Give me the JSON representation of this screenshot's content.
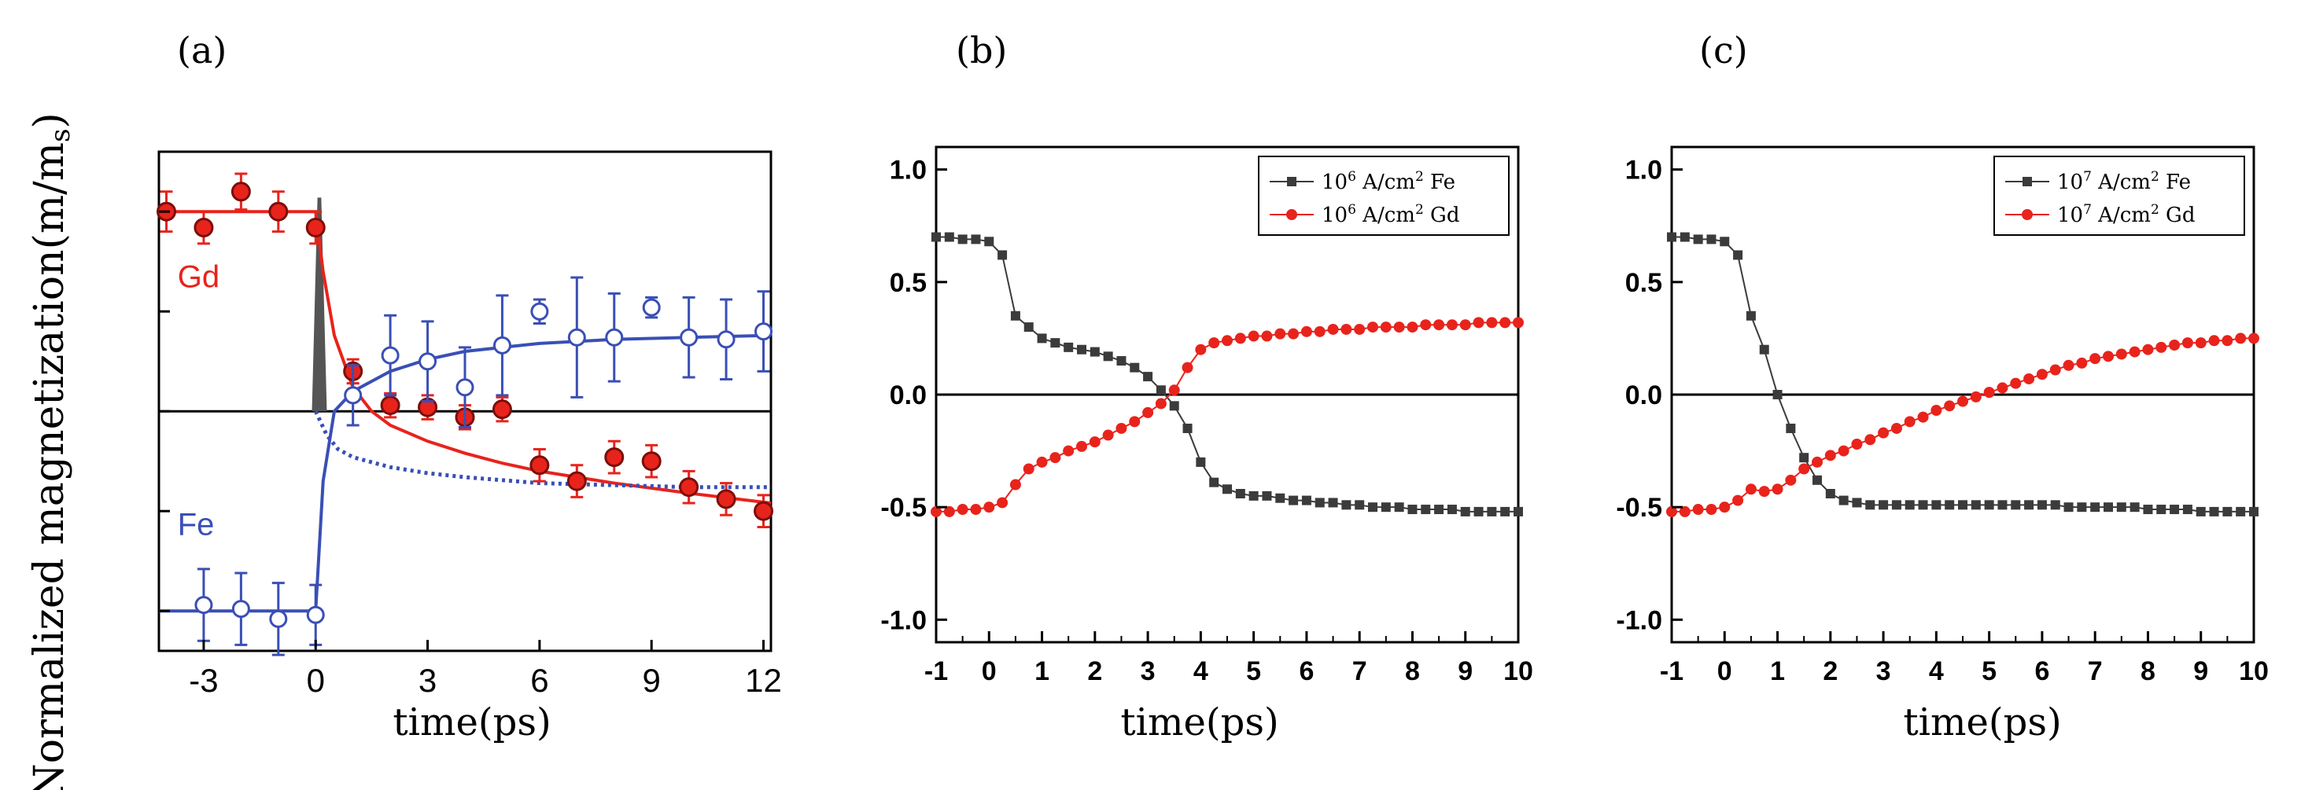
{
  "ylabel": "Normalized magnetization(m/m",
  "ylabel_sub": "s",
  "ylabel_close": ")",
  "colors": {
    "red": "#e8231c",
    "red_dark": "#7a0f0a",
    "blue": "#3a4fb5",
    "dark": "#3b3b3b",
    "axis": "#000000"
  },
  "chart_data": [
    {
      "panel_label": "(a)",
      "type": "scatter",
      "xlabel": "time(ps)",
      "xlim": [
        -4.2,
        12.2
      ],
      "ylim": [
        -1.2,
        1.3
      ],
      "xticks": [
        -3,
        0,
        3,
        6,
        9,
        12
      ],
      "xtick_labels": [
        "-3",
        "0",
        "3",
        "6",
        "9",
        "12"
      ],
      "yticks": [
        -1,
        -0.5,
        0,
        0.5,
        1
      ],
      "zero_line": true,
      "annotations": [
        {
          "text": "Gd",
          "x": -3.7,
          "y": 0.62,
          "color": "red"
        },
        {
          "text": "Fe",
          "x": -3.7,
          "y": -0.62,
          "color": "blue"
        }
      ],
      "pulse": {
        "x0": -0.1,
        "x1": 0.3,
        "peak": 1.07
      },
      "series": [
        {
          "name": "Gd",
          "marker": "filled-circle",
          "color": "red",
          "x": [
            -4,
            -3,
            -2,
            -1,
            0,
            1,
            2,
            3,
            4,
            5,
            6,
            7,
            8,
            9,
            10,
            11,
            12
          ],
          "y": [
            1.0,
            0.92,
            1.1,
            1.0,
            0.92,
            0.2,
            0.03,
            0.02,
            -0.03,
            0.01,
            -0.27,
            -0.35,
            -0.23,
            -0.25,
            -0.38,
            -0.44,
            -0.5
          ],
          "err": [
            0.1,
            0.08,
            0.09,
            0.1,
            0.08,
            0.06,
            0.06,
            0.06,
            0.06,
            0.06,
            0.08,
            0.08,
            0.08,
            0.08,
            0.08,
            0.08,
            0.08
          ]
        },
        {
          "name": "Fe",
          "marker": "open-circle",
          "color": "blue",
          "x": [
            -3,
            -2,
            -1,
            0,
            1,
            2,
            3,
            4,
            5,
            6,
            7,
            8,
            9,
            10,
            11,
            12
          ],
          "y": [
            -0.97,
            -0.99,
            -1.04,
            -1.02,
            0.08,
            0.28,
            0.25,
            0.12,
            0.33,
            0.5,
            0.37,
            0.37,
            0.52,
            0.37,
            0.36,
            0.4
          ],
          "err": [
            0.18,
            0.18,
            0.18,
            0.15,
            0.15,
            0.2,
            0.2,
            0.2,
            0.25,
            0.06,
            0.3,
            0.22,
            0.05,
            0.2,
            0.2,
            0.2
          ]
        }
      ],
      "fits": [
        {
          "name": "Gd fit",
          "color": "red",
          "style": "solid",
          "x": [
            -4.2,
            0,
            0.2,
            0.5,
            1,
            1.5,
            2,
            3,
            4,
            5,
            6,
            8,
            10,
            12.2
          ],
          "y": [
            1.0,
            1.0,
            0.7,
            0.38,
            0.12,
            0.0,
            -0.07,
            -0.15,
            -0.21,
            -0.26,
            -0.3,
            -0.36,
            -0.41,
            -0.46
          ]
        },
        {
          "name": "Fe fit",
          "color": "blue",
          "style": "solid",
          "x": [
            -4.2,
            0,
            0.2,
            0.5,
            1,
            2,
            3,
            4,
            5,
            6,
            8,
            10,
            12.2
          ],
          "y": [
            -1.0,
            -1.0,
            -0.35,
            0.0,
            0.1,
            0.2,
            0.26,
            0.3,
            0.32,
            0.34,
            0.36,
            0.37,
            0.38
          ]
        },
        {
          "name": "dotted",
          "color": "blue",
          "style": "dotted",
          "x": [
            0,
            0.3,
            0.6,
            1,
            2,
            3,
            4,
            6,
            8,
            10,
            12.2
          ],
          "y": [
            0.0,
            -0.12,
            -0.19,
            -0.23,
            -0.28,
            -0.31,
            -0.33,
            -0.36,
            -0.37,
            -0.38,
            -0.38
          ]
        }
      ]
    },
    {
      "panel_label": "(b)",
      "type": "line",
      "xlabel": "time(ps)",
      "xlim": [
        -1,
        10
      ],
      "ylim": [
        -1.1,
        1.1
      ],
      "xticks": [
        -1,
        0,
        1,
        2,
        3,
        4,
        5,
        6,
        7,
        8,
        9,
        10
      ],
      "xtick_labels": [
        "-1",
        "0",
        "1",
        "2",
        "3",
        "4",
        "5",
        "6",
        "7",
        "8",
        "9",
        "10"
      ],
      "yticks": [
        -1.0,
        -0.5,
        0.0,
        0.5,
        1.0
      ],
      "ytick_labels": [
        "-1.0",
        "-0.5",
        "0.0",
        "0.5",
        "1.0"
      ],
      "zero_line": true,
      "legend": [
        {
          "mantissa": "10",
          "exponent": "6",
          "unit": " A/cm",
          "unit_exp": "2",
          "suffix": " Fe"
        },
        {
          "mantissa": "10",
          "exponent": "6",
          "unit": " A/cm",
          "unit_exp": "2",
          "suffix": " Gd"
        }
      ],
      "series": [
        {
          "name": "10^6 A/cm^2 Fe",
          "color": "dark",
          "marker": "square",
          "x": [
            -1,
            -0.75,
            -0.5,
            -0.25,
            0,
            0.25,
            0.5,
            0.75,
            1,
            1.25,
            1.5,
            1.75,
            2,
            2.25,
            2.5,
            2.75,
            3,
            3.25,
            3.5,
            3.75,
            4,
            4.25,
            4.5,
            4.75,
            5,
            5.25,
            5.5,
            5.75,
            6,
            6.25,
            6.5,
            6.75,
            7,
            7.25,
            7.5,
            7.75,
            8,
            8.25,
            8.5,
            8.75,
            9,
            9.25,
            9.5,
            9.75,
            10
          ],
          "y": [
            0.7,
            0.7,
            0.69,
            0.69,
            0.68,
            0.62,
            0.35,
            0.3,
            0.25,
            0.23,
            0.21,
            0.2,
            0.19,
            0.17,
            0.15,
            0.12,
            0.08,
            0.02,
            -0.05,
            -0.15,
            -0.3,
            -0.39,
            -0.42,
            -0.44,
            -0.45,
            -0.45,
            -0.46,
            -0.47,
            -0.47,
            -0.48,
            -0.48,
            -0.49,
            -0.49,
            -0.5,
            -0.5,
            -0.5,
            -0.51,
            -0.51,
            -0.51,
            -0.51,
            -0.52,
            -0.52,
            -0.52,
            -0.52,
            -0.52
          ]
        },
        {
          "name": "10^6 A/cm^2 Gd",
          "color": "red",
          "marker": "circle",
          "x": [
            -1,
            -0.75,
            -0.5,
            -0.25,
            0,
            0.25,
            0.5,
            0.75,
            1,
            1.25,
            1.5,
            1.75,
            2,
            2.25,
            2.5,
            2.75,
            3,
            3.25,
            3.5,
            3.75,
            4,
            4.25,
            4.5,
            4.75,
            5,
            5.25,
            5.5,
            5.75,
            6,
            6.25,
            6.5,
            6.75,
            7,
            7.25,
            7.5,
            7.75,
            8,
            8.25,
            8.5,
            8.75,
            9,
            9.25,
            9.5,
            9.75,
            10
          ],
          "y": [
            -0.52,
            -0.52,
            -0.51,
            -0.51,
            -0.5,
            -0.48,
            -0.4,
            -0.33,
            -0.3,
            -0.28,
            -0.25,
            -0.23,
            -0.21,
            -0.18,
            -0.15,
            -0.12,
            -0.08,
            -0.04,
            0.02,
            0.12,
            0.2,
            0.23,
            0.24,
            0.25,
            0.26,
            0.26,
            0.27,
            0.27,
            0.28,
            0.28,
            0.29,
            0.29,
            0.29,
            0.3,
            0.3,
            0.3,
            0.3,
            0.31,
            0.31,
            0.31,
            0.31,
            0.32,
            0.32,
            0.32,
            0.32
          ]
        }
      ]
    },
    {
      "panel_label": "(c)",
      "type": "line",
      "xlabel": "time(ps)",
      "xlim": [
        -1,
        10
      ],
      "ylim": [
        -1.1,
        1.1
      ],
      "xticks": [
        -1,
        0,
        1,
        2,
        3,
        4,
        5,
        6,
        7,
        8,
        9,
        10
      ],
      "xtick_labels": [
        "-1",
        "0",
        "1",
        "2",
        "3",
        "4",
        "5",
        "6",
        "7",
        "8",
        "9",
        "10"
      ],
      "yticks": [
        -1.0,
        -0.5,
        0.0,
        0.5,
        1.0
      ],
      "ytick_labels": [
        "-1.0",
        "-0.5",
        "0.0",
        "0.5",
        "1.0"
      ],
      "zero_line": true,
      "legend": [
        {
          "mantissa": "10",
          "exponent": "7",
          "unit": " A/cm",
          "unit_exp": "2",
          "suffix": " Fe"
        },
        {
          "mantissa": "10",
          "exponent": "7",
          "unit": " A/cm",
          "unit_exp": "2",
          "suffix": " Gd"
        }
      ],
      "series": [
        {
          "name": "10^7 A/cm^2 Fe",
          "color": "dark",
          "marker": "square",
          "x": [
            -1,
            -0.75,
            -0.5,
            -0.25,
            0,
            0.25,
            0.5,
            0.75,
            1,
            1.25,
            1.5,
            1.75,
            2,
            2.25,
            2.5,
            2.75,
            3,
            3.25,
            3.5,
            3.75,
            4,
            4.25,
            4.5,
            4.75,
            5,
            5.25,
            5.5,
            5.75,
            6,
            6.25,
            6.5,
            6.75,
            7,
            7.25,
            7.5,
            7.75,
            8,
            8.25,
            8.5,
            8.75,
            9,
            9.25,
            9.5,
            9.75,
            10
          ],
          "y": [
            0.7,
            0.7,
            0.69,
            0.69,
            0.68,
            0.62,
            0.35,
            0.2,
            0.0,
            -0.15,
            -0.28,
            -0.38,
            -0.44,
            -0.47,
            -0.48,
            -0.49,
            -0.49,
            -0.49,
            -0.49,
            -0.49,
            -0.49,
            -0.49,
            -0.49,
            -0.49,
            -0.49,
            -0.49,
            -0.49,
            -0.49,
            -0.49,
            -0.49,
            -0.5,
            -0.5,
            -0.5,
            -0.5,
            -0.5,
            -0.5,
            -0.51,
            -0.51,
            -0.51,
            -0.51,
            -0.52,
            -0.52,
            -0.52,
            -0.52,
            -0.52
          ]
        },
        {
          "name": "10^7 A/cm^2 Gd",
          "color": "red",
          "marker": "circle",
          "x": [
            -1,
            -0.75,
            -0.5,
            -0.25,
            0,
            0.25,
            0.5,
            0.75,
            1,
            1.25,
            1.5,
            1.75,
            2,
            2.25,
            2.5,
            2.75,
            3,
            3.25,
            3.5,
            3.75,
            4,
            4.25,
            4.5,
            4.75,
            5,
            5.25,
            5.5,
            5.75,
            6,
            6.25,
            6.5,
            6.75,
            7,
            7.25,
            7.5,
            7.75,
            8,
            8.25,
            8.5,
            8.75,
            9,
            9.25,
            9.5,
            9.75,
            10
          ],
          "y": [
            -0.52,
            -0.52,
            -0.51,
            -0.51,
            -0.5,
            -0.47,
            -0.42,
            -0.43,
            -0.42,
            -0.38,
            -0.33,
            -0.3,
            -0.27,
            -0.25,
            -0.22,
            -0.2,
            -0.17,
            -0.15,
            -0.12,
            -0.1,
            -0.07,
            -0.05,
            -0.03,
            -0.01,
            0.01,
            0.03,
            0.05,
            0.07,
            0.09,
            0.11,
            0.13,
            0.14,
            0.16,
            0.17,
            0.18,
            0.19,
            0.2,
            0.21,
            0.22,
            0.23,
            0.23,
            0.24,
            0.24,
            0.25,
            0.25
          ]
        }
      ]
    }
  ]
}
